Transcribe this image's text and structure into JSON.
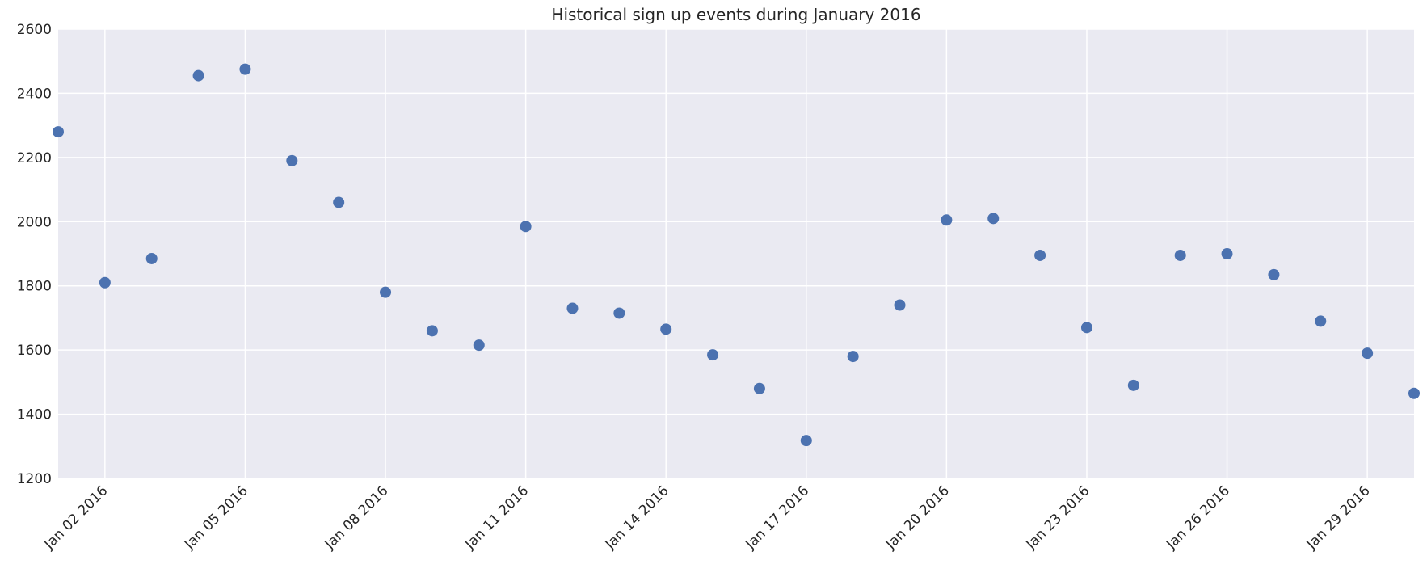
{
  "chart_data": {
    "type": "scatter",
    "title": "Historical sign up events during January 2016",
    "xlabel": "",
    "ylabel": "",
    "x_is_date": true,
    "xlim": [
      "2016-01-01",
      "2016-01-30"
    ],
    "ylim": [
      1200,
      2600
    ],
    "yticks": [
      1200,
      1400,
      1600,
      1800,
      2000,
      2200,
      2400,
      2600
    ],
    "xticks": [
      {
        "date": "2016-01-02",
        "label": "Jan 02 2016"
      },
      {
        "date": "2016-01-05",
        "label": "Jan 05 2016"
      },
      {
        "date": "2016-01-08",
        "label": "Jan 08 2016"
      },
      {
        "date": "2016-01-11",
        "label": "Jan 11 2016"
      },
      {
        "date": "2016-01-14",
        "label": "Jan 14 2016"
      },
      {
        "date": "2016-01-17",
        "label": "Jan 17 2016"
      },
      {
        "date": "2016-01-20",
        "label": "Jan 20 2016"
      },
      {
        "date": "2016-01-23",
        "label": "Jan 23 2016"
      },
      {
        "date": "2016-01-26",
        "label": "Jan 26 2016"
      },
      {
        "date": "2016-01-29",
        "label": "Jan 29 2016"
      }
    ],
    "grid": true,
    "background": "#eaeaf2",
    "grid_color": "#ffffff",
    "marker_color": "#4c72b0",
    "series": [
      {
        "points": [
          {
            "x": "2016-01-01",
            "y": 2280
          },
          {
            "x": "2016-01-02",
            "y": 1810
          },
          {
            "x": "2016-01-03",
            "y": 1885
          },
          {
            "x": "2016-01-04",
            "y": 2455
          },
          {
            "x": "2016-01-05",
            "y": 2475
          },
          {
            "x": "2016-01-06",
            "y": 2190
          },
          {
            "x": "2016-01-07",
            "y": 2060
          },
          {
            "x": "2016-01-08",
            "y": 1780
          },
          {
            "x": "2016-01-09",
            "y": 1660
          },
          {
            "x": "2016-01-10",
            "y": 1615
          },
          {
            "x": "2016-01-11",
            "y": 1985
          },
          {
            "x": "2016-01-12",
            "y": 1730
          },
          {
            "x": "2016-01-13",
            "y": 1715
          },
          {
            "x": "2016-01-14",
            "y": 1665
          },
          {
            "x": "2016-01-15",
            "y": 1585
          },
          {
            "x": "2016-01-16",
            "y": 1480
          },
          {
            "x": "2016-01-17",
            "y": 1318
          },
          {
            "x": "2016-01-18",
            "y": 1580
          },
          {
            "x": "2016-01-19",
            "y": 1740
          },
          {
            "x": "2016-01-20",
            "y": 2005
          },
          {
            "x": "2016-01-21",
            "y": 2010
          },
          {
            "x": "2016-01-22",
            "y": 1895
          },
          {
            "x": "2016-01-23",
            "y": 1670
          },
          {
            "x": "2016-01-24",
            "y": 1490
          },
          {
            "x": "2016-01-25",
            "y": 1895
          },
          {
            "x": "2016-01-26",
            "y": 1900
          },
          {
            "x": "2016-01-27",
            "y": 1835
          },
          {
            "x": "2016-01-28",
            "y": 1690
          },
          {
            "x": "2016-01-29",
            "y": 1590
          },
          {
            "x": "2016-01-30",
            "y": 1465
          }
        ]
      }
    ]
  }
}
